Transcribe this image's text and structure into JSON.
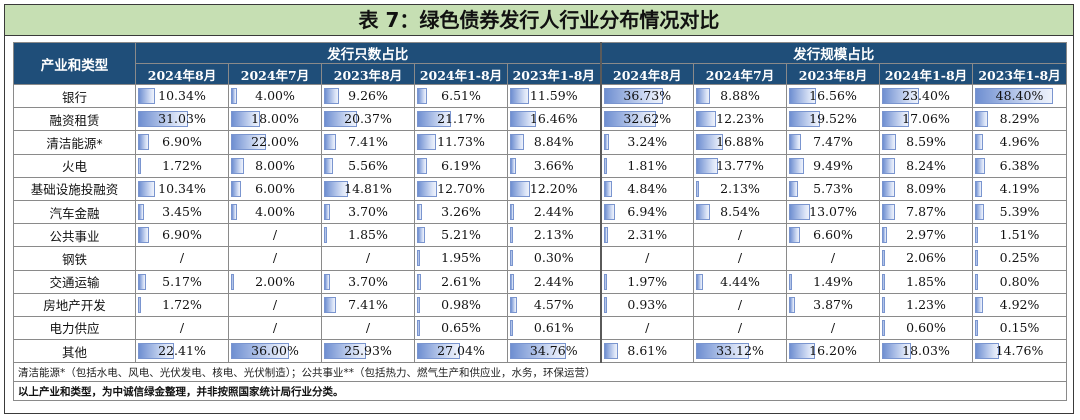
{
  "title": "表 7：绿色债券发行人行业分布情况对比",
  "header": {
    "category_label": "产业和类型",
    "group_count": "发行只数占比",
    "group_scale": "发行规模占比",
    "periods": [
      "2024年8月",
      "2024年7月",
      "2023年8月",
      "2024年1-8月",
      "2023年1-8月"
    ]
  },
  "rows": [
    {
      "name": "银行",
      "count": [
        "10.34%",
        "4.00%",
        "9.26%",
        "6.51%",
        "11.59%"
      ],
      "scale": [
        "36.73%",
        "8.88%",
        "16.56%",
        "23.40%",
        "48.40%"
      ]
    },
    {
      "name": "融资租赁",
      "count": [
        "31.03%",
        "18.00%",
        "20.37%",
        "21.17%",
        "16.46%"
      ],
      "scale": [
        "32.62%",
        "12.23%",
        "19.52%",
        "17.06%",
        "8.29%"
      ]
    },
    {
      "name": "清洁能源*",
      "count": [
        "6.90%",
        "22.00%",
        "7.41%",
        "11.73%",
        "8.84%"
      ],
      "scale": [
        "3.24%",
        "16.88%",
        "7.47%",
        "8.59%",
        "4.96%"
      ]
    },
    {
      "name": "火电",
      "count": [
        "1.72%",
        "8.00%",
        "5.56%",
        "6.19%",
        "3.66%"
      ],
      "scale": [
        "1.81%",
        "13.77%",
        "9.49%",
        "8.24%",
        "6.38%"
      ]
    },
    {
      "name": "基础设施投融资",
      "count": [
        "10.34%",
        "6.00%",
        "14.81%",
        "12.70%",
        "12.20%"
      ],
      "scale": [
        "4.84%",
        "2.13%",
        "5.73%",
        "8.09%",
        "4.19%"
      ]
    },
    {
      "name": "汽车金融",
      "count": [
        "3.45%",
        "4.00%",
        "3.70%",
        "3.26%",
        "2.44%"
      ],
      "scale": [
        "6.94%",
        "8.54%",
        "13.07%",
        "7.87%",
        "5.39%"
      ]
    },
    {
      "name": "公共事业",
      "count": [
        "6.90%",
        "/",
        "1.85%",
        "5.21%",
        "2.13%"
      ],
      "scale": [
        "2.31%",
        "/",
        "6.60%",
        "2.97%",
        "1.51%"
      ]
    },
    {
      "name": "钢铁",
      "count": [
        "/",
        "/",
        "/",
        "1.95%",
        "0.30%"
      ],
      "scale": [
        "/",
        "/",
        "/",
        "2.06%",
        "0.25%"
      ]
    },
    {
      "name": "交通运输",
      "count": [
        "5.17%",
        "2.00%",
        "3.70%",
        "2.61%",
        "2.44%"
      ],
      "scale": [
        "1.97%",
        "4.44%",
        "1.49%",
        "1.85%",
        "0.80%"
      ]
    },
    {
      "name": "房地产开发",
      "count": [
        "1.72%",
        "/",
        "7.41%",
        "0.98%",
        "4.57%"
      ],
      "scale": [
        "0.93%",
        "/",
        "3.87%",
        "1.23%",
        "4.92%"
      ]
    },
    {
      "name": "电力供应",
      "count": [
        "/",
        "/",
        "/",
        "0.65%",
        "0.61%"
      ],
      "scale": [
        "/",
        "/",
        "/",
        "0.60%",
        "0.15%"
      ]
    },
    {
      "name": "其他",
      "count": [
        "22.41%",
        "36.00%",
        "25.93%",
        "27.04%",
        "34.76%"
      ],
      "scale": [
        "8.61%",
        "33.12%",
        "16.20%",
        "18.03%",
        "14.76%"
      ]
    }
  ],
  "notes": {
    "footnote": "清洁能源*（包括水电、风电、光伏发电、核电、光伏制造）；公共事业**（包括热力、燃气生产和供应业，水务，环保运营）",
    "source": "以上产业和类型，为中诚信绿金整理，并非按照国家统计局行业分类。"
  },
  "colors": {
    "title_bg": "#c6dfb3",
    "header_bg": "#1f4e79",
    "bar": "#6f8fd1"
  }
}
